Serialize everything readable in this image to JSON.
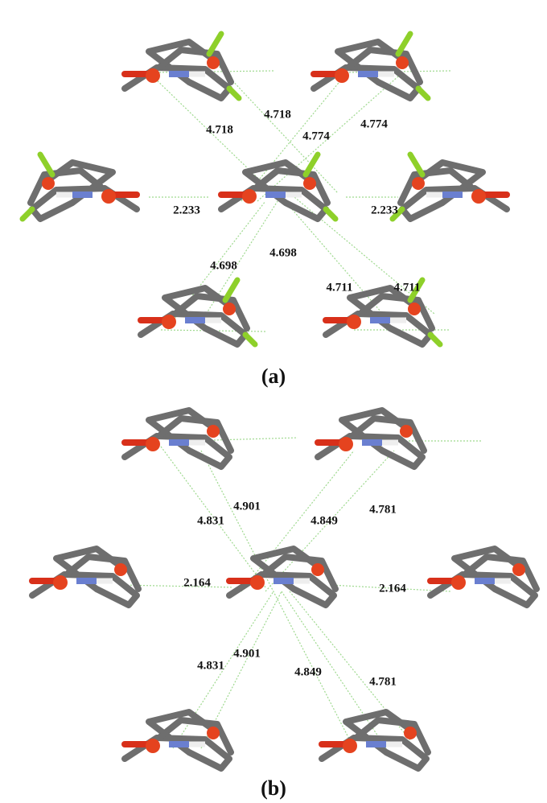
{
  "panels": [
    {
      "label": "(a)",
      "distances": [
        "4.718",
        "4.718",
        "4.774",
        "4.774",
        "2.233",
        "2.233",
        "4.698",
        "4.698",
        "4.711",
        "4.711"
      ]
    },
    {
      "label": "(b)",
      "distances": [
        "4.901",
        "4.781",
        "4.831",
        "4.849",
        "2.164",
        "2.164",
        "4.831",
        "4.901",
        "4.849",
        "4.781"
      ]
    }
  ]
}
